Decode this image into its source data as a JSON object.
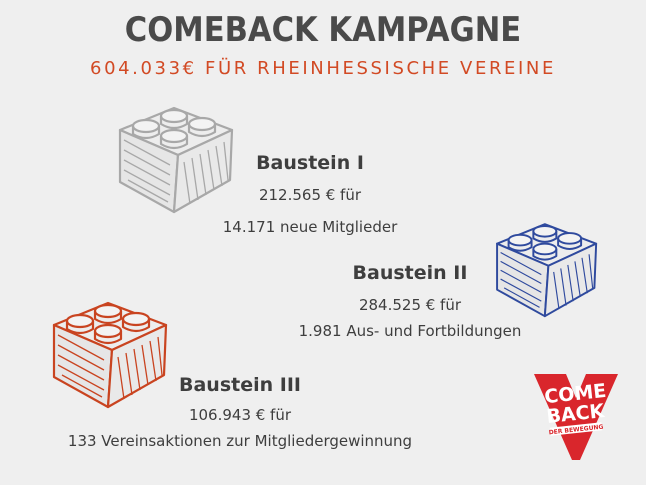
{
  "header": {
    "title": "COMEBACK KAMPAGNE",
    "subtitle": "604.033€ FÜR RHEINHESSISCHE VEREINE"
  },
  "bausteine": [
    {
      "name": "Baustein I",
      "amount": "212.565 € für",
      "desc": "14.171 neue Mitglieder",
      "color": "#a8a8a8"
    },
    {
      "name": "Baustein II",
      "amount": "284.525 € für",
      "desc": "1.981 Aus- und Fortbildungen",
      "color": "#2f4a9e"
    },
    {
      "name": "Baustein III",
      "amount": "106.943 € für",
      "desc": "133 Vereinsaktionen zur Mitgliedergewinnung",
      "color": "#c94420"
    }
  ],
  "logo": {
    "line1": "COME",
    "line2": "BACK",
    "tagline": "DER BEWEGUNG",
    "color": "#d9262c"
  }
}
